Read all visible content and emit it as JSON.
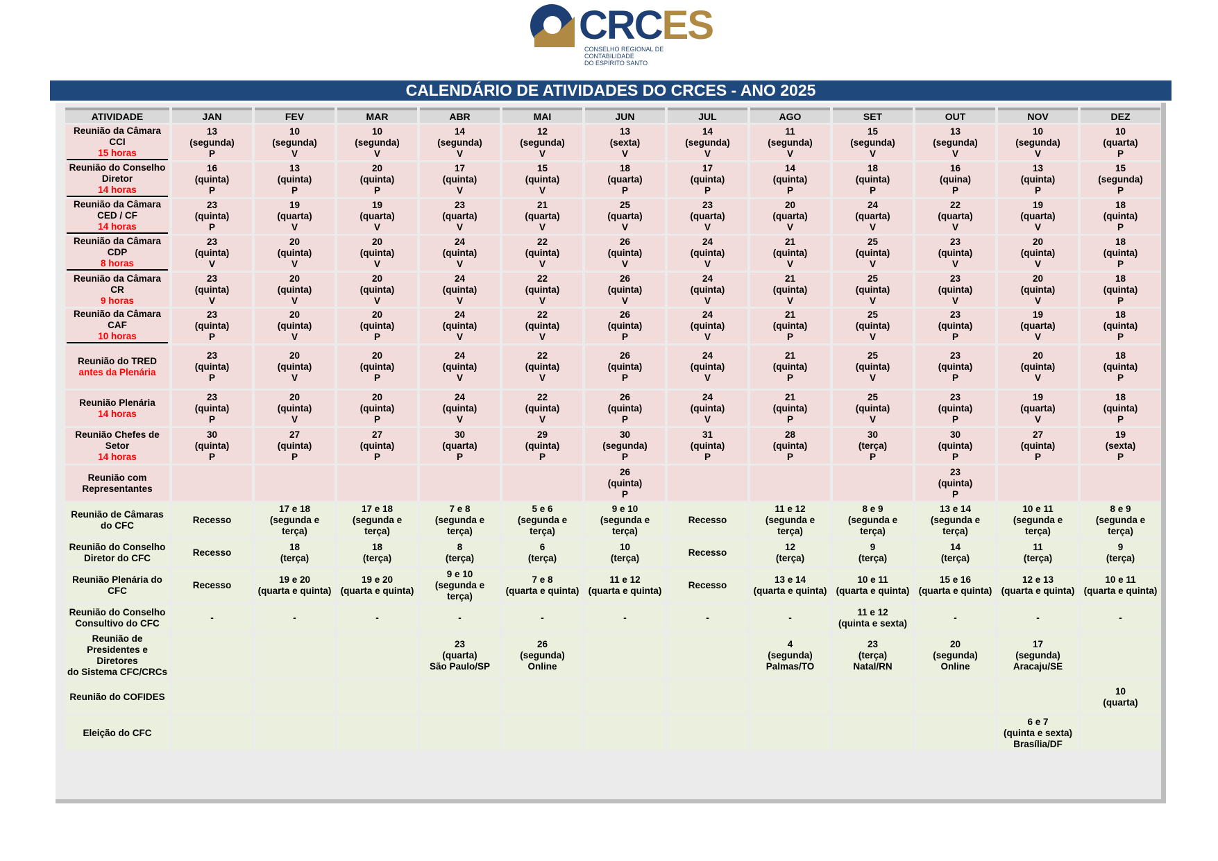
{
  "logo": {
    "text_a": "CRC",
    "text_b": "ES",
    "sub1": "CONSELHO REGIONAL DE CONTABILIDADE",
    "sub2": "DO ESPÍRITO SANTO"
  },
  "title": "CALENDÁRIO DE ATIVIDADES DO CRCES - ANO 2025",
  "headers": [
    "ATIVIDADE",
    "JAN",
    "FEV",
    "MAR",
    "ABR",
    "MAI",
    "JUN",
    "JUL",
    "AGO",
    "SET",
    "OUT",
    "NOV",
    "DEZ"
  ],
  "rows": [
    {
      "label": "Reunião da Câmara\nCCI",
      "time": "15 horas",
      "style": "pink",
      "h": 51,
      "cells": [
        "13\n(segunda)\nP",
        "10\n(segunda)\nV",
        "10\n(segunda)\nV",
        "14\n(segunda)\nV",
        "12\n(segunda)\nV",
        "13\n(sexta)\nV",
        "14\n(segunda)\nV",
        "11\n(segunda)\nV",
        "15\n(segunda)\nV",
        "13\n(segunda)\nV",
        "10\n(segunda)\nV",
        "10\n(quarta)\nP"
      ]
    },
    {
      "label": "Reunião do Conselho\nDiretor",
      "time": "14 horas",
      "style": "pink",
      "h": 49,
      "cells": [
        "16\n(quinta)\nP",
        "13\n(quinta)\nP",
        "20\n(quinta)\nP",
        "17\n(quinta)\nV",
        "15\n(quinta)\nV",
        "18\n(quarta)\nP",
        "17\n(quinta)\nP",
        "14\n(quinta)\nP",
        "18\n(quinta)\nP",
        "16\n(quina)\nP",
        "13\n(quinta)\nP",
        "15\n(segunda)\nP"
      ]
    },
    {
      "label": "Reunião da Câmara\nCED / CF",
      "time": "14 horas",
      "style": "pink",
      "h": 49,
      "cells": [
        "23\n(quinta)\nP",
        "19\n(quarta)\nV",
        "19\n(quarta)\nV",
        "23\n(quarta)\nV",
        "21\n(quarta)\nV",
        "25\n(quarta)\nV",
        "23\n(quarta)\nV",
        "20\n(quarta)\nV",
        "24\n(quarta)\nV",
        "22\n(quarta)\nV",
        "19\n(quarta)\nV",
        "18\n(quinta)\nP"
      ]
    },
    {
      "label": "Reunião da Câmara\nCDP",
      "time": "8 horas",
      "style": "pink",
      "h": 49,
      "cells": [
        "23\n(quinta)\nV",
        "20\n(quinta)\nV",
        "20\n(quinta)\nV",
        "24\n(quinta)\nV",
        "22\n(quinta)\nV",
        "26\n(quinta)\nV",
        "24\n(quinta)\nV",
        "21\n(quinta)\nV",
        "25\n(quinta)\nV",
        "23\n(quinta)\nV",
        "20\n(quinta)\nV",
        "18\n(quinta)\nP"
      ]
    },
    {
      "label": "Reunião da Câmara CR",
      "time": "9 horas",
      "style": "pink",
      "h": 49,
      "cells": [
        "23\n(quinta)\nV",
        "20\n(quinta)\nV",
        "20\n(quinta)\nV",
        "24\n(quinta)\nV",
        "22\n(quinta)\nV",
        "26\n(quinta)\nV",
        "24\n(quinta)\nV",
        "21\n(quinta)\nV",
        "25\n(quinta)\nV",
        "23\n(quinta)\nV",
        "20\n(quinta)\nV",
        "18\n(quinta)\nP"
      ]
    },
    {
      "label": "Reunião da Câmara\nCAF",
      "time": "10 horas",
      "style": "pink",
      "h": 49,
      "cells": [
        "23\n(quinta)\nP",
        "20\n(quinta)\nV",
        "20\n(quinta)\nP",
        "24\n(quinta)\nV",
        "22\n(quinta)\nV",
        "26\n(quinta)\nP",
        "24\n(quinta)\nV",
        "21\n(quinta)\nP",
        "25\n(quinta)\nV",
        "23\n(quinta)\nP",
        "19\n(quarta)\nV",
        "18\n(quinta)\nP"
      ]
    },
    {
      "label": "Reunião do TRED",
      "time": "antes da Plenária",
      "style": "pink",
      "h": 62,
      "cells": [
        "23\n(quinta)\nP",
        "20\n(quinta)\nV",
        "20\n(quinta)\nP",
        "24\n(quinta)\nV",
        "22\n(quinta)\nV",
        "26\n(quinta)\nP",
        "24\n(quinta)\nV",
        "21\n(quinta)\nP",
        "25\n(quinta)\nV",
        "23\n(quinta)\nP",
        "20\n(quinta)\nV",
        "18\n(quinta)\nP"
      ]
    },
    {
      "label": "Reunião Plenária",
      "time": "14 horas",
      "style": "pink",
      "h": 51,
      "cells": [
        "23\n(quinta)\nP",
        "20\n(quinta)\nV",
        "20\n(quinta)\nP",
        "24\n(quinta)\nV",
        "22\n(quinta)\nV",
        "26\n(quinta)\nP",
        "24\n(quinta)\nV",
        "21\n(quinta)\nP",
        "25\n(quinta)\nV",
        "23\n(quinta)\nP",
        "19\n(quarta)\nV",
        "18\n(quinta)\nP"
      ]
    },
    {
      "label": "Reunião Chefes de\nSetor",
      "time": "14 horas",
      "style": "pink",
      "h": 51,
      "cells": [
        "30\n(quinta)\nP",
        "27\n(quinta)\nP",
        "27\n(quinta)\nP",
        "30\n(quarta)\nP",
        "29\n(quinta)\nP",
        "30\n(segunda)\nP",
        "31\n(quinta)\nP",
        "28\n(quinta)\nP",
        "30\n(terça)\nP",
        "30\n(quinta)\nP",
        "27\n(quinta)\nP",
        "19\n(sexta)\nP"
      ]
    },
    {
      "label": "Reunião com\nRepresentantes",
      "time": "",
      "style": "pink",
      "h": 51,
      "cells": [
        "",
        "",
        "",
        "",
        "",
        "26\n(quinta)\nP",
        "",
        "",
        "",
        "23\n(quinta)\nP",
        "",
        ""
      ]
    },
    {
      "label": "Reunião de Câmaras\ndo CFC",
      "time": "",
      "style": "green",
      "h": 49,
      "cells": [
        "Recesso",
        "17 e 18\n(segunda e\nterça)",
        "17 e 18\n(segunda e\nterça)",
        "7 e 8\n(segunda e\nterça)",
        "5 e 6\n(segunda e\nterça)",
        "9 e 10\n(segunda e\nterça)",
        "Recesso",
        "11 e 12\n(segunda e\nterça)",
        "8 e 9\n(segunda e\nterça)",
        "13 e 14\n(segunda e\nterça)",
        "10 e 11\n(segunda e\nterça)",
        "8 e 9\n(segunda e\nterça)"
      ]
    },
    {
      "label": "Reunião do Conselho\nDiretor do CFC",
      "time": "",
      "style": "green",
      "h": 39,
      "cells": [
        "Recesso",
        "18\n(terça)",
        "18\n(terça)",
        "8\n(terça)",
        "6\n(terça)",
        "10\n(terça)",
        "Recesso",
        "12\n(terça)",
        "9\n(terça)",
        "14\n(terça)",
        "11\n(terça)",
        "9\n(terça)"
      ]
    },
    {
      "label": "Reunião Plenária do\nCFC",
      "time": "",
      "style": "green",
      "h": 49,
      "cells": [
        "Recesso",
        "19 e 20\n(quarta e quinta)",
        "19 e 20\n(quarta e quinta)",
        "9 e 10\n(segunda e\nterça)",
        "7 e 8\n(quarta e quinta)",
        "11 e 12\n(quarta e quinta)",
        "Recesso",
        "13 e 14\n(quarta e quinta)",
        "10 e 11\n(quarta e quinta)",
        "15 e 16\n(quarta e quinta)",
        "12 e 13\n(quarta e quinta)",
        "10 e 11\n(quarta e quinta)"
      ]
    },
    {
      "label": "Reunião do Conselho\nConsultivo do CFC",
      "time": "",
      "style": "green",
      "h": 39,
      "cells": [
        "-",
        "-",
        "-",
        "-",
        "-",
        "-",
        "-",
        "-",
        "11 e 12\n(quinta e sexta)",
        "-",
        "-",
        "-"
      ]
    },
    {
      "label": "Reunião de\nPresidentes e Diretores\ndo Sistema CFC/CRCs",
      "time": "",
      "style": "green",
      "h": 49,
      "cells": [
        "",
        "",
        "",
        "23\n(quarta)\nSão Paulo/SP",
        "26\n(segunda)\nOnline",
        "",
        "",
        "4\n(segunda)\nPalmas/TO",
        "23\n(terça)\nNatal/RN",
        "20\n(segunda)\nOnline",
        "17\n(segunda)\nAracaju/SE",
        ""
      ]
    },
    {
      "label": "Reunião do COFIDES",
      "time": "",
      "style": "green",
      "h": 49,
      "cells": [
        "",
        "",
        "",
        "",
        "",
        "",
        "",
        "",
        "",
        "",
        "",
        "10\n(quarta)"
      ]
    },
    {
      "label": "Eleição do CFC",
      "time": "",
      "style": "green",
      "h": 49,
      "cells": [
        "",
        "",
        "",
        "",
        "",
        "",
        "",
        "",
        "",
        "",
        "6 e 7\n(quinta e sexta)\nBrasília/DF",
        ""
      ]
    }
  ]
}
